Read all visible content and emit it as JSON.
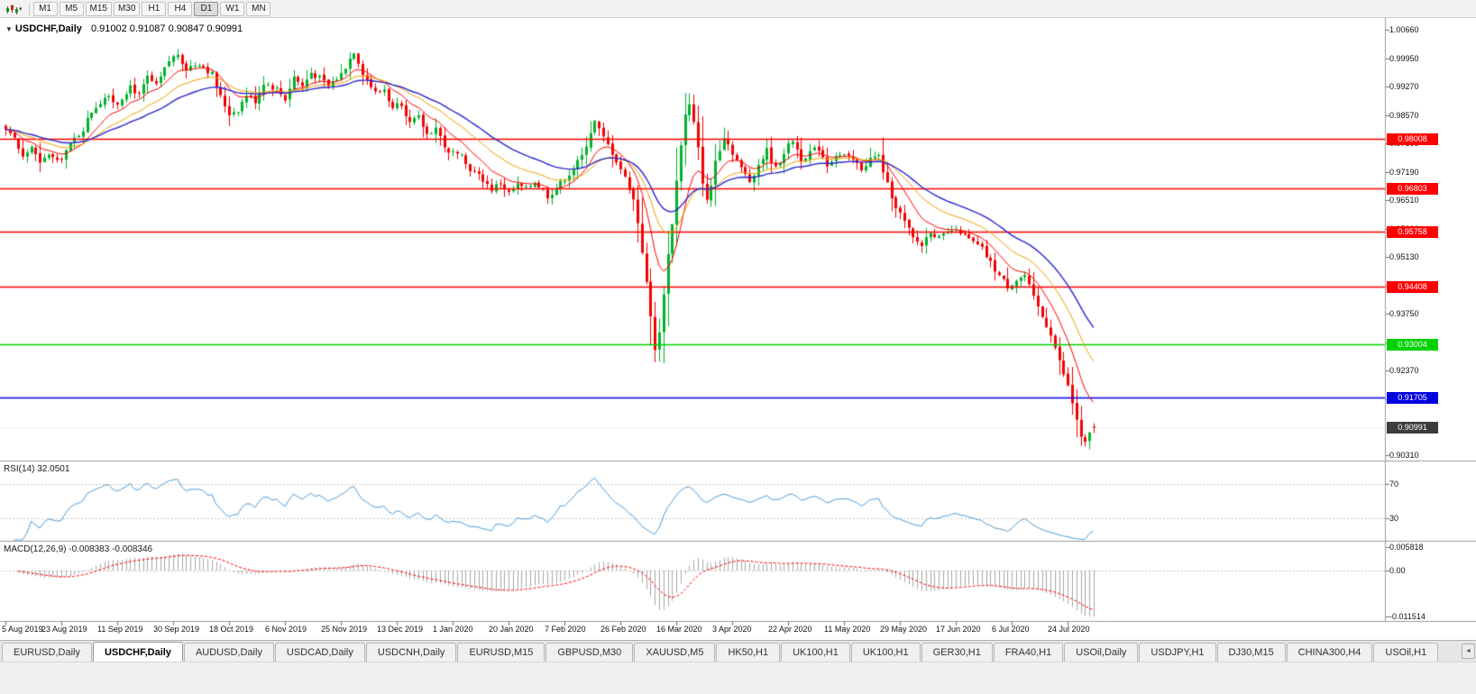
{
  "toolbar": {
    "timeframes": [
      {
        "label": "M1"
      },
      {
        "label": "M5"
      },
      {
        "label": "M15"
      },
      {
        "label": "M30"
      },
      {
        "label": "H1"
      },
      {
        "label": "H4"
      },
      {
        "label": "D1",
        "active": true
      },
      {
        "label": "W1"
      },
      {
        "label": "MN"
      }
    ]
  },
  "chart": {
    "collapse_icon": "▼",
    "symbol_title": "USDCHF,Daily",
    "ohlc_readout": "0.91002 0.91087 0.90847 0.90991",
    "price_axis_ticks": [
      "1.00660",
      "0.99950",
      "0.99270",
      "0.98570",
      "0.97890",
      "0.97190",
      "0.96510",
      "0.95810",
      "0.95130",
      "0.94430",
      "0.93750",
      "0.93050",
      "0.92370",
      "0.91670",
      "0.90310"
    ],
    "levels": [
      {
        "price": 0.98008,
        "label": "0.98008",
        "color": "#FF0000"
      },
      {
        "price": 0.96803,
        "label": "0.96803",
        "color": "#FF0000"
      },
      {
        "price": 0.95758,
        "label": "0.95758",
        "color": "#FF0000"
      },
      {
        "price": 0.94408,
        "label": "0.94408",
        "color": "#FF0000"
      },
      {
        "price": 0.93004,
        "label": "0.93004",
        "color": "#00D200"
      },
      {
        "price": 0.91705,
        "label": "0.91705",
        "color": "#0000E0"
      }
    ],
    "current_price": {
      "label": "0.90991",
      "price": 0.90991,
      "bg": "#3C3C3C"
    },
    "date_axis": [
      "5 Aug 2019",
      "23 Aug 2019",
      "11 Sep 2019",
      "30 Sep 2019",
      "18 Oct 2019",
      "6 Nov 2019",
      "25 Nov 2019",
      "13 Dec 2019",
      "1 Jan 2020",
      "20 Jan 2020",
      "7 Feb 2020",
      "26 Feb 2020",
      "16 Mar 2020",
      "3 Apr 2020",
      "22 Apr 2020",
      "11 May 2020",
      "29 May 2020",
      "17 Jun 2020",
      "6 Jul 2020",
      "24 Jul 2020"
    ]
  },
  "indicators": {
    "rsi": {
      "readout": "RSI(14) 32.0501",
      "period": 14,
      "value": 32.0501,
      "upper_level": "70",
      "lower_level": "30",
      "line_color": "#4F9BD5"
    },
    "macd": {
      "readout": "MACD(12,26,9) -0.008383 -0.008346",
      "fast": 12,
      "slow": 26,
      "signal_period": 9,
      "main_value": -0.008383,
      "signal_value": -0.008346,
      "axis_ticks": [
        "0.005818",
        "0.00",
        "-0.011514"
      ],
      "histogram_color": "#A8A8A8",
      "signal_color": "#FF0000"
    }
  },
  "tabbar": {
    "scroll_left_icon": "◄",
    "tabs": [
      {
        "label": "EURUSD,Daily"
      },
      {
        "label": "USDCHF,Daily",
        "active": true
      },
      {
        "label": "AUDUSD,Daily"
      },
      {
        "label": "USDCAD,Daily"
      },
      {
        "label": "USDCNH,Daily"
      },
      {
        "label": "EURUSD,M15"
      },
      {
        "label": "GBPUSD,M30"
      },
      {
        "label": "XAUUSD,M5"
      },
      {
        "label": "HK50,H1"
      },
      {
        "label": "UK100,H1"
      },
      {
        "label": "UK100,H1"
      },
      {
        "label": "GER30,H1"
      },
      {
        "label": "FRA40,H1"
      },
      {
        "label": "USOil,Daily"
      },
      {
        "label": "USDJPY,H1"
      },
      {
        "label": "DJ30,M15"
      },
      {
        "label": "CHINA300,H4"
      },
      {
        "label": "USOil,H1"
      }
    ]
  },
  "chart_data": {
    "type": "candlestick",
    "symbol": "USDCHF",
    "timeframe": "Daily",
    "last_candle": {
      "open": 0.91002,
      "high": 0.91087,
      "low": 0.90847,
      "close": 0.90991
    },
    "price_range": {
      "top": 1.0066,
      "bottom": 0.9031
    },
    "candle_count": 254,
    "colors": {
      "up": "#00B22C",
      "down": "#F40000"
    },
    "moving_averages": [
      {
        "type": "ema",
        "period": 10,
        "color": "#FF0000"
      },
      {
        "type": "ema",
        "period": 21,
        "color": "#F0A000"
      },
      {
        "type": "ema",
        "period": 34,
        "color": "#2828CC"
      }
    ],
    "price_path": [
      [
        0,
        0.983
      ],
      [
        2,
        0.98
      ],
      [
        4,
        0.9755
      ],
      [
        6,
        0.9782
      ],
      [
        8,
        0.9738
      ],
      [
        10,
        0.9765
      ],
      [
        12,
        0.9742
      ],
      [
        14,
        0.9772
      ],
      [
        16,
        0.98
      ],
      [
        18,
        0.9825
      ],
      [
        20,
        0.9868
      ],
      [
        23,
        0.9902
      ],
      [
        26,
        0.9888
      ],
      [
        29,
        0.993
      ],
      [
        31,
        0.9905
      ],
      [
        33,
        0.995
      ],
      [
        35,
        0.9928
      ],
      [
        38,
        0.999
      ],
      [
        40,
        1.0008
      ],
      [
        42,
        0.9972
      ],
      [
        45,
        0.9985
      ],
      [
        48,
        0.9958
      ],
      [
        50,
        0.9902
      ],
      [
        52,
        0.9862
      ],
      [
        54,
        0.9872
      ],
      [
        56,
        0.9908
      ],
      [
        58,
        0.9893
      ],
      [
        60,
        0.9938
      ],
      [
        63,
        0.9922
      ],
      [
        65,
        0.9898
      ],
      [
        67,
        0.9952
      ],
      [
        69,
        0.9928
      ],
      [
        71,
        0.9962
      ],
      [
        73,
        0.9948
      ],
      [
        75,
        0.9928
      ],
      [
        78,
        0.9958
      ],
      [
        81,
        1.0015
      ],
      [
        83,
        0.9962
      ],
      [
        86,
        0.9912
      ],
      [
        88,
        0.9922
      ],
      [
        90,
        0.9872
      ],
      [
        92,
        0.9888
      ],
      [
        94,
        0.9838
      ],
      [
        96,
        0.9852
      ],
      [
        98,
        0.9812
      ],
      [
        100,
        0.9828
      ],
      [
        103,
        0.9762
      ],
      [
        105,
        0.9772
      ],
      [
        107,
        0.9738
      ],
      [
        109,
        0.9718
      ],
      [
        111,
        0.9702
      ],
      [
        113,
        0.9678
      ],
      [
        115,
        0.9694
      ],
      [
        117,
        0.9668
      ],
      [
        119,
        0.9688
      ],
      [
        121,
        0.9678
      ],
      [
        123,
        0.9698
      ],
      [
        126,
        0.9662
      ],
      [
        128,
        0.968
      ],
      [
        130,
        0.9704
      ],
      [
        132,
        0.9728
      ],
      [
        134,
        0.9758
      ],
      [
        136,
        0.9818
      ],
      [
        137,
        0.9842
      ],
      [
        139,
        0.9802
      ],
      [
        141,
        0.9768
      ],
      [
        143,
        0.9728
      ],
      [
        145,
        0.9682
      ],
      [
        146,
        0.9652
      ],
      [
        147,
        0.9598
      ],
      [
        148,
        0.9528
      ],
      [
        149,
        0.9448
      ],
      [
        150,
        0.9368
      ],
      [
        151,
        0.9292
      ],
      [
        152,
        0.9325
      ],
      [
        153,
        0.9428
      ],
      [
        154,
        0.9518
      ],
      [
        155,
        0.9598
      ],
      [
        156,
        0.9698
      ],
      [
        157,
        0.9788
      ],
      [
        158,
        0.9858
      ],
      [
        159,
        0.9882
      ],
      [
        160,
        0.9838
      ],
      [
        161,
        0.9775
      ],
      [
        162,
        0.9698
      ],
      [
        163,
        0.9648
      ],
      [
        164,
        0.9688
      ],
      [
        165,
        0.9748
      ],
      [
        167,
        0.9808
      ],
      [
        169,
        0.9768
      ],
      [
        171,
        0.9728
      ],
      [
        173,
        0.9698
      ],
      [
        175,
        0.9738
      ],
      [
        177,
        0.9772
      ],
      [
        179,
        0.9728
      ],
      [
        181,
        0.9768
      ],
      [
        183,
        0.9798
      ],
      [
        185,
        0.9752
      ],
      [
        187,
        0.9768
      ],
      [
        189,
        0.9778
      ],
      [
        191,
        0.9738
      ],
      [
        193,
        0.9762
      ],
      [
        195,
        0.9758
      ],
      [
        197,
        0.9748
      ],
      [
        199,
        0.9728
      ],
      [
        201,
        0.9752
      ],
      [
        203,
        0.9758
      ],
      [
        205,
        0.9688
      ],
      [
        207,
        0.9638
      ],
      [
        209,
        0.9598
      ],
      [
        211,
        0.9558
      ],
      [
        213,
        0.9542
      ],
      [
        215,
        0.9578
      ],
      [
        217,
        0.9558
      ],
      [
        219,
        0.9568
      ],
      [
        221,
        0.9588
      ],
      [
        223,
        0.9562
      ],
      [
        225,
        0.9548
      ],
      [
        227,
        0.9532
      ],
      [
        229,
        0.9498
      ],
      [
        231,
        0.9468
      ],
      [
        233,
        0.9442
      ],
      [
        235,
        0.9458
      ],
      [
        237,
        0.9468
      ],
      [
        239,
        0.9412
      ],
      [
        241,
        0.9368
      ],
      [
        243,
        0.9328
      ],
      [
        245,
        0.9258
      ],
      [
        247,
        0.9198
      ],
      [
        249,
        0.9118
      ],
      [
        250,
        0.9072
      ],
      [
        251,
        0.9058
      ],
      [
        252,
        0.9082
      ],
      [
        253,
        0.9099
      ]
    ]
  }
}
